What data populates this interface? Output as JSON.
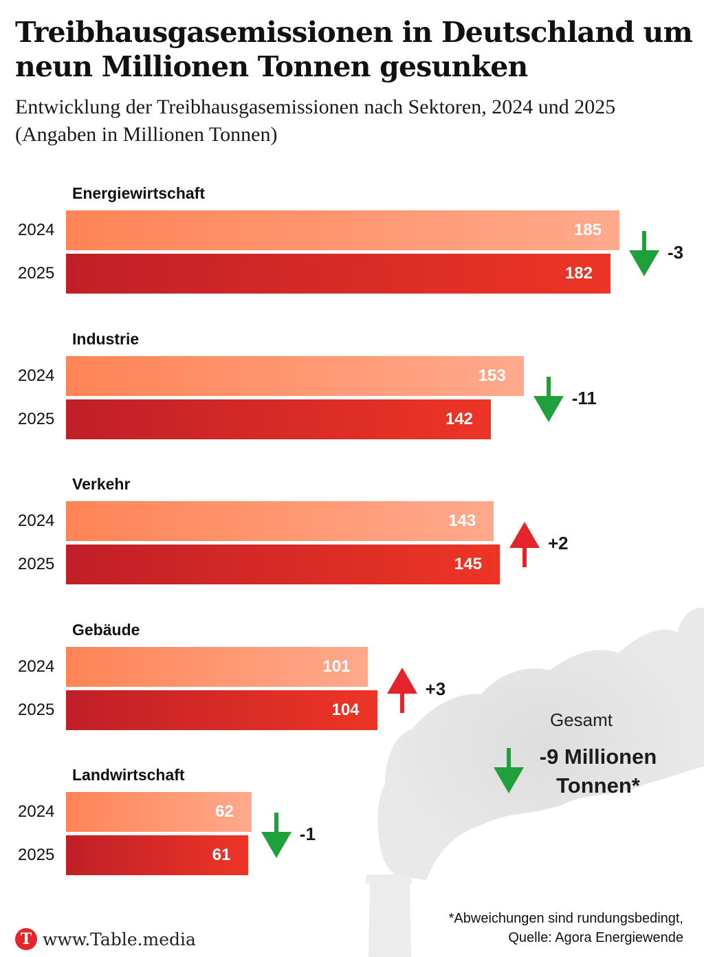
{
  "header": {
    "title": "Treibhausgasemissionen in Deutschland um neun Millionen Tonnen gesunken",
    "subtitle": "Entwicklung der Treibhausgasemissionen nach Sektoren, 2024 und 2025 (Angaben in Millionen Tonnen)"
  },
  "colors": {
    "bar_2024_start": "#ff8456",
    "bar_2024_end": "#ffa98c",
    "bar_2025_start": "#c01f27",
    "bar_2025_end": "#ed3526",
    "arrow_down": "#1fa03a",
    "arrow_up": "#e4232b"
  },
  "chart_data": {
    "type": "bar",
    "orientation": "horizontal",
    "title": "Treibhausgasemissionen in Deutschland um neun Millionen Tonnen gesunken",
    "subtitle": "Entwicklung der Treibhausgasemissionen nach Sektoren, 2024 und 2025 (Angaben in Millionen Tonnen)",
    "unit": "Millionen Tonnen",
    "categories": [
      "Energiewirtschaft",
      "Industrie",
      "Verkehr",
      "Gebäude",
      "Landwirtschaft"
    ],
    "series": [
      {
        "name": "2024",
        "values": [
          185,
          153,
          143,
          101,
          62
        ]
      },
      {
        "name": "2025",
        "values": [
          182,
          142,
          145,
          104,
          61
        ]
      }
    ],
    "changes": [
      {
        "label": "-3",
        "direction": "down"
      },
      {
        "label": "-11",
        "direction": "down"
      },
      {
        "label": "+2",
        "direction": "up"
      },
      {
        "label": "+3",
        "direction": "up"
      },
      {
        "label": "-1",
        "direction": "down"
      }
    ],
    "xlim": [
      0,
      185
    ],
    "grid": false,
    "total": {
      "label": "Gesamt",
      "value": "-9 Millionen Tonnen*",
      "direction": "down"
    }
  },
  "footer": {
    "footnote_line1": "*Abweichungen sind rundungsbedingt,",
    "footnote_line2": "Quelle: Agora Energiewende",
    "brand_logo_letter": "T",
    "brand_url": "www.Table.media"
  }
}
